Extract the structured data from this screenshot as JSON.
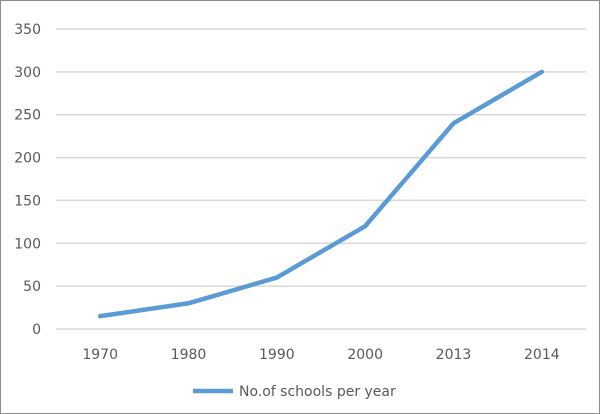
{
  "chart_data": {
    "type": "line",
    "title": "",
    "xlabel": "",
    "ylabel": "",
    "categories": [
      "1970",
      "1980",
      "1990",
      "2000",
      "2013",
      "2014"
    ],
    "series": [
      {
        "name": "No.of schools per year",
        "values": [
          15,
          30,
          60,
          120,
          240,
          300
        ],
        "color": "#5b9bd5"
      }
    ],
    "ylim": [
      0,
      350
    ],
    "yticks": [
      0,
      50,
      100,
      150,
      200,
      250,
      300,
      350
    ],
    "grid": true,
    "legend": "bottom"
  }
}
